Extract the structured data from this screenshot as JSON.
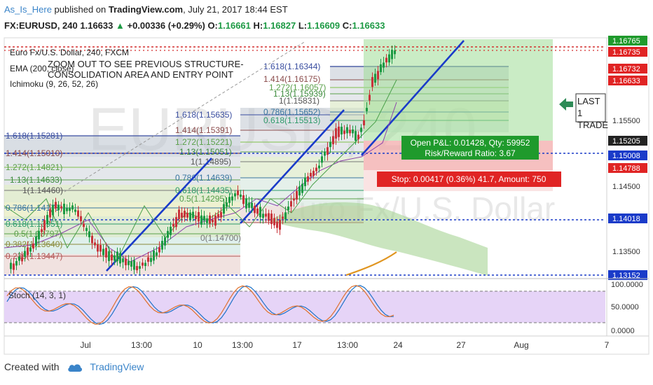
{
  "header": {
    "user": "As_Is_Here",
    "published_text": " published on ",
    "site": "TradingView.com",
    "date": ", July 21, 2017 18:44 EST",
    "symbol": "FX:EURUSD, 240",
    "last": "1.16633",
    "change": "+0.00336 (+0.29%)",
    "o_label": "O:",
    "o": "1.16661",
    "h_label": "H:",
    "h": "1.16827",
    "l_label": "L:",
    "l": "1.16609",
    "c_label": "C:",
    "c": "1.16633"
  },
  "chart": {
    "legend_title": "Euro Fx/U.S. Dollar, 240, FXCM",
    "legend_ema": "EMA (200, close)",
    "legend_ichimoku": "Ichimoku (9, 26, 52, 26)",
    "note": "ZOOM OUT TO SEE PREVIOUS STRUCTURE- CONSOLIDATION AREA AND ENTRY POINT",
    "watermark": "EURUSD, 240",
    "watermark2": "Euro Fx/U.S. Dollar",
    "last_trade_text": "LAST 1 TRADE",
    "pnl_box": {
      "line1": "Open P&L: 0.01428, Qty: 59952",
      "line2": "Risk/Reward Ratio: 3.67"
    },
    "stop_box": "Stop: 0.00417 (0.36%) 41.7, Amount: 750",
    "fib_labels": [
      "1.618(1.15281)",
      "1.414(1.15010)",
      "1.272(1.14821)",
      "1.13(1.14633)",
      "1(1.14460)",
      "0.786(1.14175)",
      "0.618(1.13951)",
      "0.5(1.13797)",
      "0.382(1.13640)",
      "0.236(1.13447)",
      "1.618(1.15635)",
      "1.414(1.15391)",
      "1.272(1.15221)",
      "1.13(1.15051)",
      "1(1.14895)",
      "0.786(1.14639)",
      "0.618(1.14435)",
      "0.5(1.14295)",
      "1.618(1.16344)",
      "1.414(1.16175)",
      "1.272(1.16057)",
      "1.13(1.15939)",
      "1(1.15831)",
      "0.786(1.15652)",
      "0.618(1.15513)",
      "0(1.14700)"
    ],
    "price_ticks": [
      "1.16765",
      "1.16735",
      "1.16732",
      "1.16633",
      "1.15500",
      "1.15205",
      "1.15008",
      "1.14788",
      "1.14500",
      "1.14018",
      "1.13500",
      "1.13152"
    ],
    "time_ticks": [
      "Jul",
      "13:00",
      "10",
      "13:00",
      "17",
      "13:00",
      "24",
      "27",
      "Aug",
      "7"
    ],
    "stoch_label": "Stoch (14, 3, 1)",
    "stoch_ticks": [
      "100.0000",
      "50.0000",
      "0.0000"
    ]
  },
  "footer": {
    "created_with": "Created with",
    "brand": "TradingView"
  },
  "colors": {
    "up": "#1d9a44",
    "down": "#c8343b",
    "trendline": "#1a3bc9",
    "dotted_blue": "#1a3bc9",
    "dotted_red": "#d32f2f",
    "stoch_bg": "#e6d4f7"
  }
}
